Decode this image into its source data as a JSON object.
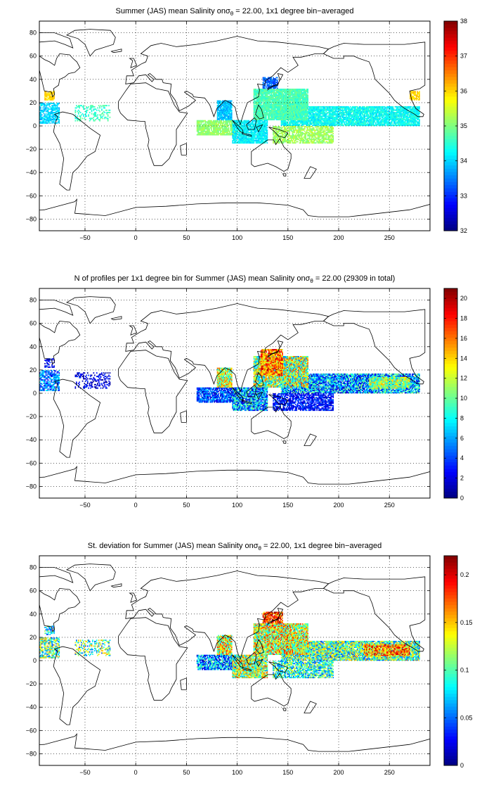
{
  "chart_data": [
    {
      "type": "heatmap",
      "title": "Summer (JAS) mean Salinity on",
      "title_symbol": "σ",
      "title_subscript": "θ",
      "title_suffix": " = 22.00, 1x1 degree bin−averaged",
      "xlim": [
        -95,
        290
      ],
      "ylim": [
        -90,
        90
      ],
      "xticks": [
        -50,
        0,
        50,
        100,
        150,
        200,
        250
      ],
      "yticks": [
        -80,
        -60,
        -40,
        -20,
        0,
        20,
        40,
        60,
        80
      ],
      "grid": true,
      "colormap": "jet",
      "colorbar": {
        "min": 32,
        "max": 38,
        "ticks": [
          32,
          33,
          34,
          35,
          36,
          37,
          38
        ]
      },
      "regions": [
        {
          "lon": [
            143,
            280
          ],
          "lat": [
            0,
            17
          ],
          "value": 34.3,
          "density": 0.9,
          "spread": 0.35
        },
        {
          "lon": [
            116,
            170
          ],
          "lat": [
            5,
            32
          ],
          "value": 34.7,
          "density": 0.95,
          "spread": 0.3
        },
        {
          "lon": [
            60,
            100
          ],
          "lat": [
            -8,
            5
          ],
          "value": 35.1,
          "density": 0.85,
          "spread": 0.25
        },
        {
          "lon": [
            80,
            95
          ],
          "lat": [
            5,
            22
          ],
          "value": 33.9,
          "density": 0.95,
          "spread": 0.3
        },
        {
          "lon": [
            95,
            130
          ],
          "lat": [
            -15,
            5
          ],
          "value": 34.2,
          "density": 0.9,
          "spread": 0.3
        },
        {
          "lon": [
            135,
            195
          ],
          "lat": [
            -15,
            0
          ],
          "value": 35.2,
          "density": 0.75,
          "spread": 0.3
        },
        {
          "lon": [
            -95,
            -75
          ],
          "lat": [
            2,
            20
          ],
          "value": 34.0,
          "density": 0.7,
          "spread": 0.3
        },
        {
          "lon": [
            -60,
            -25
          ],
          "lat": [
            4,
            18
          ],
          "value": 34.6,
          "density": 0.35,
          "spread": 0.3
        },
        {
          "lon": [
            -90,
            -80
          ],
          "lat": [
            22,
            30
          ],
          "value": 36.0,
          "density": 0.8,
          "spread": 0.2
        },
        {
          "lon": [
            270,
            280
          ],
          "lat": [
            22,
            30
          ],
          "value": 36.0,
          "density": 0.8,
          "spread": 0.2
        },
        {
          "lon": [
            125,
            140
          ],
          "lat": [
            32,
            42
          ],
          "value": 33.3,
          "density": 0.8,
          "spread": 0.3
        }
      ]
    },
    {
      "type": "heatmap",
      "title": "N of profiles per 1x1 degree bin for Summer (JAS) mean Salinity on",
      "title_symbol": "σ",
      "title_subscript": "θ",
      "title_suffix": " = 22.00 (29309 in total)",
      "xlim": [
        -95,
        290
      ],
      "ylim": [
        -90,
        90
      ],
      "xticks": [
        -50,
        0,
        50,
        100,
        150,
        200,
        250
      ],
      "yticks": [
        -80,
        -60,
        -40,
        -20,
        0,
        20,
        40,
        60,
        80
      ],
      "grid": true,
      "colormap": "jet",
      "colorbar": {
        "min": 0,
        "max": 21,
        "ticks": [
          0,
          2,
          4,
          6,
          8,
          10,
          12,
          14,
          16,
          18,
          20
        ]
      },
      "regions": [
        {
          "lon": [
            143,
            280
          ],
          "lat": [
            0,
            17
          ],
          "value": 6,
          "density": 0.9,
          "spread": 5
        },
        {
          "lon": [
            116,
            170
          ],
          "lat": [
            5,
            32
          ],
          "value": 11,
          "density": 0.95,
          "spread": 6
        },
        {
          "lon": [
            123,
            145
          ],
          "lat": [
            15,
            38
          ],
          "value": 16,
          "density": 0.9,
          "spread": 4
        },
        {
          "lon": [
            60,
            100
          ],
          "lat": [
            -8,
            5
          ],
          "value": 4,
          "density": 0.85,
          "spread": 3
        },
        {
          "lon": [
            80,
            95
          ],
          "lat": [
            5,
            22
          ],
          "value": 12,
          "density": 0.95,
          "spread": 5
        },
        {
          "lon": [
            95,
            130
          ],
          "lat": [
            -15,
            5
          ],
          "value": 6,
          "density": 0.9,
          "spread": 5
        },
        {
          "lon": [
            135,
            195
          ],
          "lat": [
            -15,
            0
          ],
          "value": 3,
          "density": 0.75,
          "spread": 2
        },
        {
          "lon": [
            230,
            270
          ],
          "lat": [
            4,
            14
          ],
          "value": 11,
          "density": 0.9,
          "spread": 4
        },
        {
          "lon": [
            -95,
            -75
          ],
          "lat": [
            2,
            20
          ],
          "value": 5,
          "density": 0.7,
          "spread": 3
        },
        {
          "lon": [
            -60,
            -25
          ],
          "lat": [
            4,
            18
          ],
          "value": 2,
          "density": 0.35,
          "spread": 2
        },
        {
          "lon": [
            -90,
            -80
          ],
          "lat": [
            22,
            30
          ],
          "value": 3,
          "density": 0.5,
          "spread": 2
        }
      ]
    },
    {
      "type": "heatmap",
      "title": "St. deviation for Summer (JAS) mean Salinity on",
      "title_symbol": "σ",
      "title_subscript": "θ",
      "title_suffix": " = 22.00, 1x1 degree bin−averaged",
      "xlim": [
        -95,
        290
      ],
      "ylim": [
        -90,
        90
      ],
      "xticks": [
        -50,
        0,
        50,
        100,
        150,
        200,
        250
      ],
      "yticks": [
        -80,
        -60,
        -40,
        -20,
        0,
        20,
        40,
        60,
        80
      ],
      "grid": true,
      "colormap": "jet",
      "colorbar": {
        "min": 0,
        "max": 0.22,
        "ticks": [
          0,
          0.05,
          0.1,
          0.15,
          0.2
        ],
        "tick_labels": [
          "0",
          "0.05",
          "0.1",
          "0.15",
          "0.2"
        ]
      },
      "regions": [
        {
          "lon": [
            143,
            280
          ],
          "lat": [
            0,
            17
          ],
          "value": 0.1,
          "density": 0.9,
          "spread": 0.06
        },
        {
          "lon": [
            116,
            170
          ],
          "lat": [
            5,
            32
          ],
          "value": 0.13,
          "density": 0.95,
          "spread": 0.06
        },
        {
          "lon": [
            125,
            145
          ],
          "lat": [
            32,
            42
          ],
          "value": 0.18,
          "density": 0.8,
          "spread": 0.04
        },
        {
          "lon": [
            60,
            100
          ],
          "lat": [
            -8,
            5
          ],
          "value": 0.06,
          "density": 0.85,
          "spread": 0.05
        },
        {
          "lon": [
            80,
            95
          ],
          "lat": [
            5,
            22
          ],
          "value": 0.13,
          "density": 0.95,
          "spread": 0.06
        },
        {
          "lon": [
            95,
            130
          ],
          "lat": [
            -15,
            5
          ],
          "value": 0.12,
          "density": 0.9,
          "spread": 0.06
        },
        {
          "lon": [
            135,
            195
          ],
          "lat": [
            -15,
            0
          ],
          "value": 0.09,
          "density": 0.75,
          "spread": 0.05
        },
        {
          "lon": [
            225,
            270
          ],
          "lat": [
            4,
            14
          ],
          "value": 0.16,
          "density": 0.9,
          "spread": 0.05
        },
        {
          "lon": [
            -95,
            -75
          ],
          "lat": [
            2,
            20
          ],
          "value": 0.1,
          "density": 0.7,
          "spread": 0.06
        },
        {
          "lon": [
            -60,
            -25
          ],
          "lat": [
            4,
            18
          ],
          "value": 0.1,
          "density": 0.35,
          "spread": 0.06
        },
        {
          "lon": [
            -90,
            -80
          ],
          "lat": [
            22,
            30
          ],
          "value": 0.08,
          "density": 0.5,
          "spread": 0.05
        }
      ]
    }
  ]
}
